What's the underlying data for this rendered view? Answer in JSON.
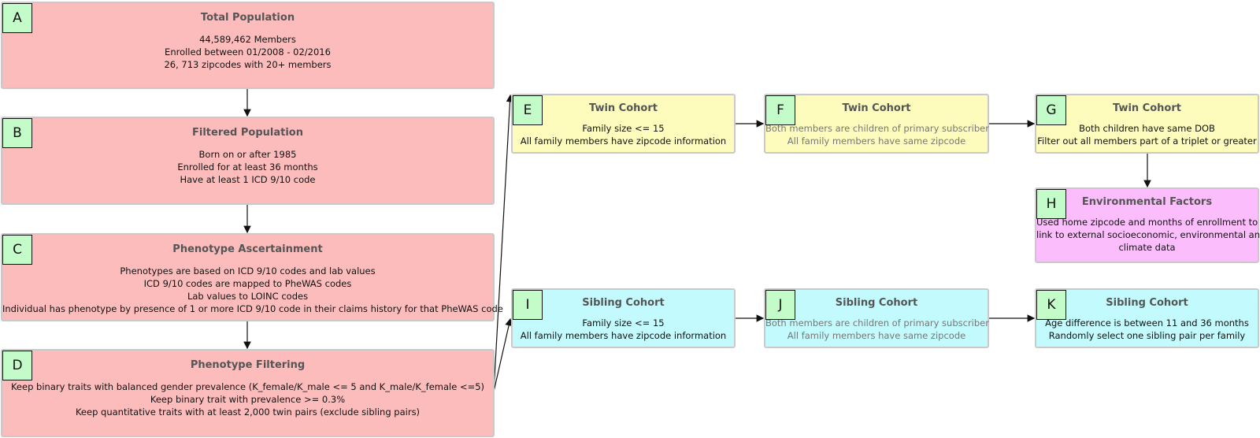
{
  "nodes": [
    {
      "badge": "A",
      "title": "Total Population",
      "lines": [
        "44,589,462 Members",
        "Enrolled between 01/2008 - 02/2016",
        "26, 713 zipcodes with 20+ members"
      ]
    },
    {
      "badge": "B",
      "title": "Filtered Population",
      "lines": [
        "Born on or after 1985",
        "Enrolled for at least 36 months",
        "Have at least 1 ICD 9/10 code"
      ]
    },
    {
      "badge": "C",
      "title": "Phenotype Ascertainment",
      "lines": [
        "Phenotypes are based on ICD 9/10 codes and lab values",
        "ICD 9/10 codes are mapped to PheWAS codes",
        "Lab values to LOINC codes",
        "Individual has phenotype by presence of 1 or more ICD 9/10 code in their claims history for that PheWAS code"
      ]
    },
    {
      "badge": "D",
      "title": "Phenotype Filtering",
      "lines": [
        "Keep binary traits with balanced gender prevalence (K_female/K_male <= 5 and K_male/K_female <=5)",
        "Keep binary trait with prevalence >= 0.3%",
        "Keep quantitative traits with at least 2,000 twin pairs (exclude sibling pairs)"
      ]
    },
    {
      "badge": "E",
      "title": "Twin Cohort",
      "lines": [
        "Family size <= 15",
        "All family members have zipcode information"
      ]
    },
    {
      "badge": "F",
      "title": "Twin Cohort",
      "lines": [
        "Both members are children of primary subscriber",
        "All family members have same zipcode"
      ]
    },
    {
      "badge": "G",
      "title": "Twin Cohort",
      "lines": [
        "Both children have same DOB",
        "Filter out all members part of a triplet or greater"
      ]
    },
    {
      "badge": "H",
      "title": "Environmental Factors",
      "lines": [
        "Used home zipcode and months of enrollment to",
        "link to external socioeconomic, environmental and",
        "climate data"
      ]
    },
    {
      "badge": "I",
      "title": "Sibling Cohort",
      "lines": [
        "Family size <= 15",
        "All family members have zipcode information"
      ]
    },
    {
      "badge": "J",
      "title": "Sibling Cohort",
      "lines": [
        "Both members are children of primary subscriber",
        "All family members have same zipcode"
      ]
    },
    {
      "badge": "K",
      "title": "Sibling Cohort",
      "lines": [
        "Age difference is between 11 and 36 months",
        "Randomly select one sibling pair per family"
      ]
    }
  ]
}
